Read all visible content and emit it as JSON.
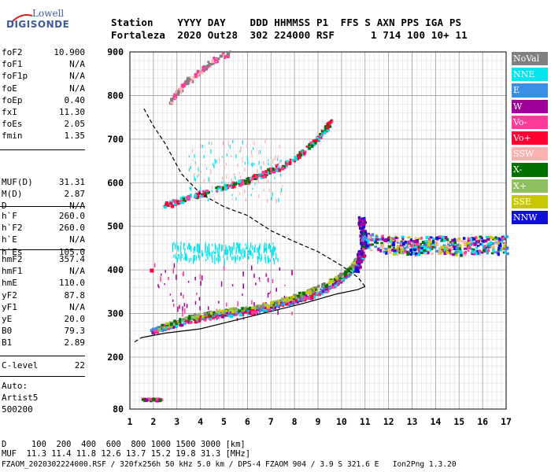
{
  "logo": {
    "line1": "Lowell",
    "line2": "DIGISONDE"
  },
  "header": {
    "line1": "Station    YYYY DAY    DDD HHMMSS P1  FFS S AXN PPS IGA PS",
    "line2": "Fortaleza  2020 Out28  302 224000 RSF      1 714 100 10+ 11"
  },
  "parameters": {
    "group1": [
      {
        "name": "foF2",
        "value": "10.900"
      },
      {
        "name": "foF1",
        "value": "N/A"
      },
      {
        "name": "foF1p",
        "value": "N/A"
      },
      {
        "name": "foE",
        "value": "N/A"
      },
      {
        "name": "foEp",
        "value": "0.40"
      },
      {
        "name": "fxI",
        "value": "11.30"
      },
      {
        "name": "foEs",
        "value": "2.05"
      },
      {
        "name": "fmin",
        "value": "1.35"
      }
    ],
    "group2": [
      {
        "name": "MUF(D)",
        "value": "31.31"
      },
      {
        "name": "M(D)",
        "value": "2.87"
      },
      {
        "name": "D",
        "value": "N/A"
      }
    ],
    "group3": [
      {
        "name": "h`F",
        "value": "260.0"
      },
      {
        "name": "h`F2",
        "value": "260.0"
      },
      {
        "name": "h`E",
        "value": "N/A"
      },
      {
        "name": "h`Es",
        "value": "105.0"
      }
    ],
    "group4": [
      {
        "name": "hmF2",
        "value": "357.4"
      },
      {
        "name": "hmF1",
        "value": "N/A"
      },
      {
        "name": "hmE",
        "value": "110.0"
      },
      {
        "name": "yF2",
        "value": "87.8"
      },
      {
        "name": "yF1",
        "value": "N/A"
      },
      {
        "name": "yE",
        "value": "20.0"
      },
      {
        "name": "B0",
        "value": "79.3"
      },
      {
        "name": "B1",
        "value": "2.89"
      }
    ],
    "group5": [
      {
        "name": "C-level",
        "value": "22"
      }
    ]
  },
  "autoscaler": {
    "line1": "Auto:",
    "line2": "Artist5",
    "line3": "500200"
  },
  "legend": [
    {
      "label": "NoVal",
      "color": "#808080"
    },
    {
      "label": "NNE",
      "color": "#00e5ee"
    },
    {
      "label": "E",
      "color": "#3a8ee6"
    },
    {
      "label": "W",
      "color": "#a0009a"
    },
    {
      "label": "Vo-",
      "color": "#ff3c9a"
    },
    {
      "label": "Vo+",
      "color": "#ff0033"
    },
    {
      "label": "SSW",
      "color": "#ffb0b0"
    },
    {
      "label": "X-",
      "color": "#007000"
    },
    {
      "label": "X+",
      "color": "#8fc060"
    },
    {
      "label": "SSE",
      "color": "#c8c800"
    },
    {
      "label": "NNW",
      "color": "#1010d8"
    }
  ],
  "bottom": {
    "line1": "D     100  200  400  600  800 1000 1500 3000 [km]",
    "line2": "MUF  11.3 11.4 11.8 12.6 13.7 15.2 19.8 31.3 [MHz]",
    "line3": "FZAOM_2020302224000.RSF / 320fx256h 50 kHz 5.0 km / DPS-4 FZAOM 904 / 3.9 S 321.6 E   Ion2Png 1.3.20"
  },
  "chart_data": {
    "type": "scatter",
    "x_ticks": [
      1,
      2,
      3,
      4,
      5,
      6,
      7,
      8,
      9,
      10,
      11,
      12,
      13,
      14,
      15,
      16,
      17
    ],
    "y_ticks": [
      80,
      200,
      300,
      400,
      500,
      600,
      700,
      800,
      900
    ],
    "xlim": [
      1,
      17
    ],
    "y_scale_note": "piecewise: 80-200 compressed, 200-900 linear",
    "grid": true,
    "profile_line": [
      [
        1.5,
        245
      ],
      [
        2.5,
        255
      ],
      [
        4,
        265
      ],
      [
        5.5,
        285
      ],
      [
        7,
        305
      ],
      [
        8.5,
        325
      ],
      [
        9.8,
        345
      ],
      [
        10.7,
        355
      ],
      [
        11,
        362
      ],
      [
        10.7,
        383
      ],
      [
        10,
        410
      ],
      [
        9,
        442
      ],
      [
        8,
        465
      ],
      [
        7,
        490
      ],
      [
        6,
        525
      ],
      [
        5,
        545
      ],
      [
        4,
        575
      ],
      [
        3.2,
        620
      ],
      [
        2.5,
        690
      ],
      [
        2,
        730
      ],
      [
        1.6,
        770
      ]
    ],
    "o_trace": [
      [
        1.9,
        262
      ],
      [
        2.5,
        272
      ],
      [
        3,
        280
      ],
      [
        4,
        292
      ],
      [
        5,
        300
      ],
      [
        6,
        306
      ],
      [
        7,
        318
      ],
      [
        8,
        332
      ],
      [
        9,
        350
      ],
      [
        9.7,
        370
      ],
      [
        10.2,
        392
      ],
      [
        10.6,
        415
      ],
      [
        10.9,
        440
      ]
    ],
    "x_trace": [
      [
        2.2,
        270
      ],
      [
        3,
        285
      ],
      [
        4,
        300
      ],
      [
        5,
        308
      ],
      [
        6,
        315
      ],
      [
        7,
        325
      ],
      [
        8,
        342
      ],
      [
        9,
        362
      ],
      [
        9.8,
        385
      ],
      [
        10.3,
        405
      ],
      [
        10.6,
        428
      ]
    ],
    "second_hop": [
      [
        2.4,
        550
      ],
      [
        3,
        560
      ],
      [
        4,
        578
      ],
      [
        5,
        592
      ],
      [
        6,
        608
      ],
      [
        7,
        630
      ],
      [
        8,
        660
      ],
      [
        8.7,
        690
      ],
      [
        9.2,
        718
      ],
      [
        9.5,
        745
      ]
    ],
    "third_hop": [
      [
        2.7,
        790
      ],
      [
        3.3,
        830
      ],
      [
        4,
        860
      ],
      [
        4.6,
        885
      ],
      [
        5.2,
        900
      ]
    ],
    "spread_region": [
      [
        10.8,
        470
      ],
      [
        12,
        460
      ],
      [
        13,
        458
      ],
      [
        14,
        460
      ],
      [
        15,
        455
      ],
      [
        16,
        460
      ],
      [
        17,
        460
      ]
    ],
    "es_trace": [
      [
        1.5,
        105
      ],
      [
        2.3,
        105
      ]
    ]
  }
}
